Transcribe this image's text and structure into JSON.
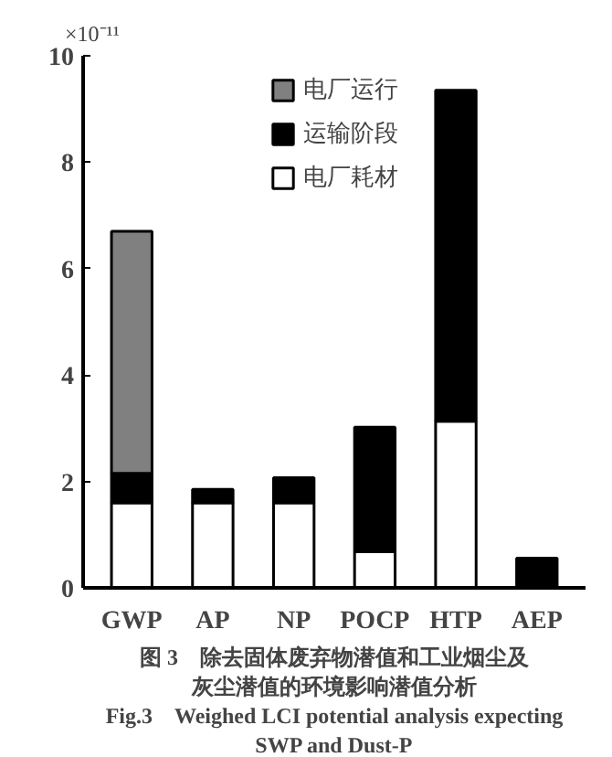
{
  "chart_data": {
    "type": "bar",
    "stacked": true,
    "ylabel": "×10⁻¹¹",
    "categories": [
      "GWP",
      "AP",
      "NP",
      "POCP",
      "HTP",
      "AEP"
    ],
    "series": [
      {
        "name": "电厂耗材",
        "color": "#ffffff",
        "values": [
          1.6,
          1.6,
          1.6,
          0.68,
          3.13,
          null
        ]
      },
      {
        "name": "运输阶段",
        "color": "#000000",
        "values": [
          0.55,
          0.25,
          0.47,
          2.34,
          6.22,
          0.56
        ]
      },
      {
        "name": "电厂运行",
        "color": "#808080",
        "values": [
          4.55,
          null,
          null,
          null,
          null,
          null
        ]
      }
    ],
    "ylim": [
      0,
      10
    ],
    "yticks": [
      0,
      2,
      4,
      6,
      8,
      10
    ],
    "grid": false,
    "legend": "top",
    "annotations": [
      "图 3　除去固体废弃物潜值和工业烟尘及",
      "灰尘潜值的环境影响潜值分析",
      "Fig.3　Weighed LCI potential analysis expecting",
      "SWP and Dust-P"
    ]
  }
}
